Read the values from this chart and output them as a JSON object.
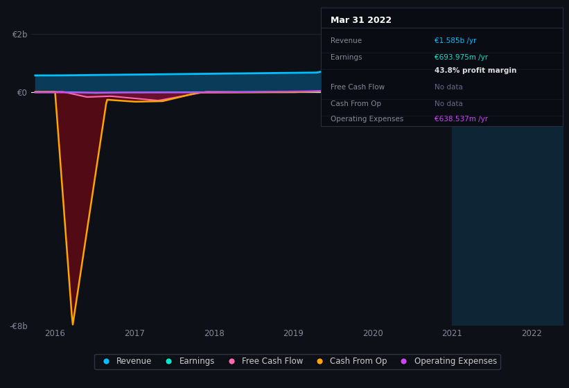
{
  "bg_color": "#0d1117",
  "plot_bg": "#0d1117",
  "fig_size": [
    8.21,
    5.6
  ],
  "dpi": 100,
  "ylim": [
    -8000000000.0,
    2500000000.0
  ],
  "xlim": [
    2015.7,
    2022.4
  ],
  "ytick_labels": [
    "-€8b",
    "€0",
    "€2b"
  ],
  "ytick_values": [
    -8000000000.0,
    0,
    2000000000.0
  ],
  "xtick_labels": [
    "2016",
    "2017",
    "2018",
    "2019",
    "2020",
    "2021",
    "2022"
  ],
  "xtick_positions": [
    2016,
    2017,
    2018,
    2019,
    2020,
    2021,
    2022
  ],
  "grid_color": "#1e2535",
  "zero_line_color": "#ffffff",
  "highlight_x_start": 2021.0,
  "highlight_x_end": 2022.5,
  "highlight_color": "#0d2535",
  "rev_color": "#00bfff",
  "earn_color": "#00e5cc",
  "fcf_color": "#ff69b4",
  "cfo_color": "#ffa500",
  "ope_color": "#cc44ff",
  "fill_rev_color": "#0a4060",
  "fill_neg_color": "#5a0a15",
  "fill_cfo_pos_color": "#2a5060",
  "legend_items": [
    {
      "label": "Revenue",
      "color": "#00bfff"
    },
    {
      "label": "Earnings",
      "color": "#00e5cc"
    },
    {
      "label": "Free Cash Flow",
      "color": "#ff69b4"
    },
    {
      "label": "Cash From Op",
      "color": "#ffa500"
    },
    {
      "label": "Operating Expenses",
      "color": "#cc44ff"
    }
  ],
  "tooltip_title": "Mar 31 2022",
  "tooltip_items": [
    {
      "label": "Revenue",
      "value": "€1.585b /yr",
      "value_color": "#00bfff"
    },
    {
      "label": "Earnings",
      "value": "€693.975m /yr",
      "value_color": "#00e5cc"
    },
    {
      "label": "",
      "value": "43.8% profit margin",
      "value_color": "#dddddd"
    },
    {
      "label": "Free Cash Flow",
      "value": "No data",
      "value_color": "#666688"
    },
    {
      "label": "Cash From Op",
      "value": "No data",
      "value_color": "#666688"
    },
    {
      "label": "Operating Expenses",
      "value": "€638.537m /yr",
      "value_color": "#cc44ff"
    }
  ]
}
